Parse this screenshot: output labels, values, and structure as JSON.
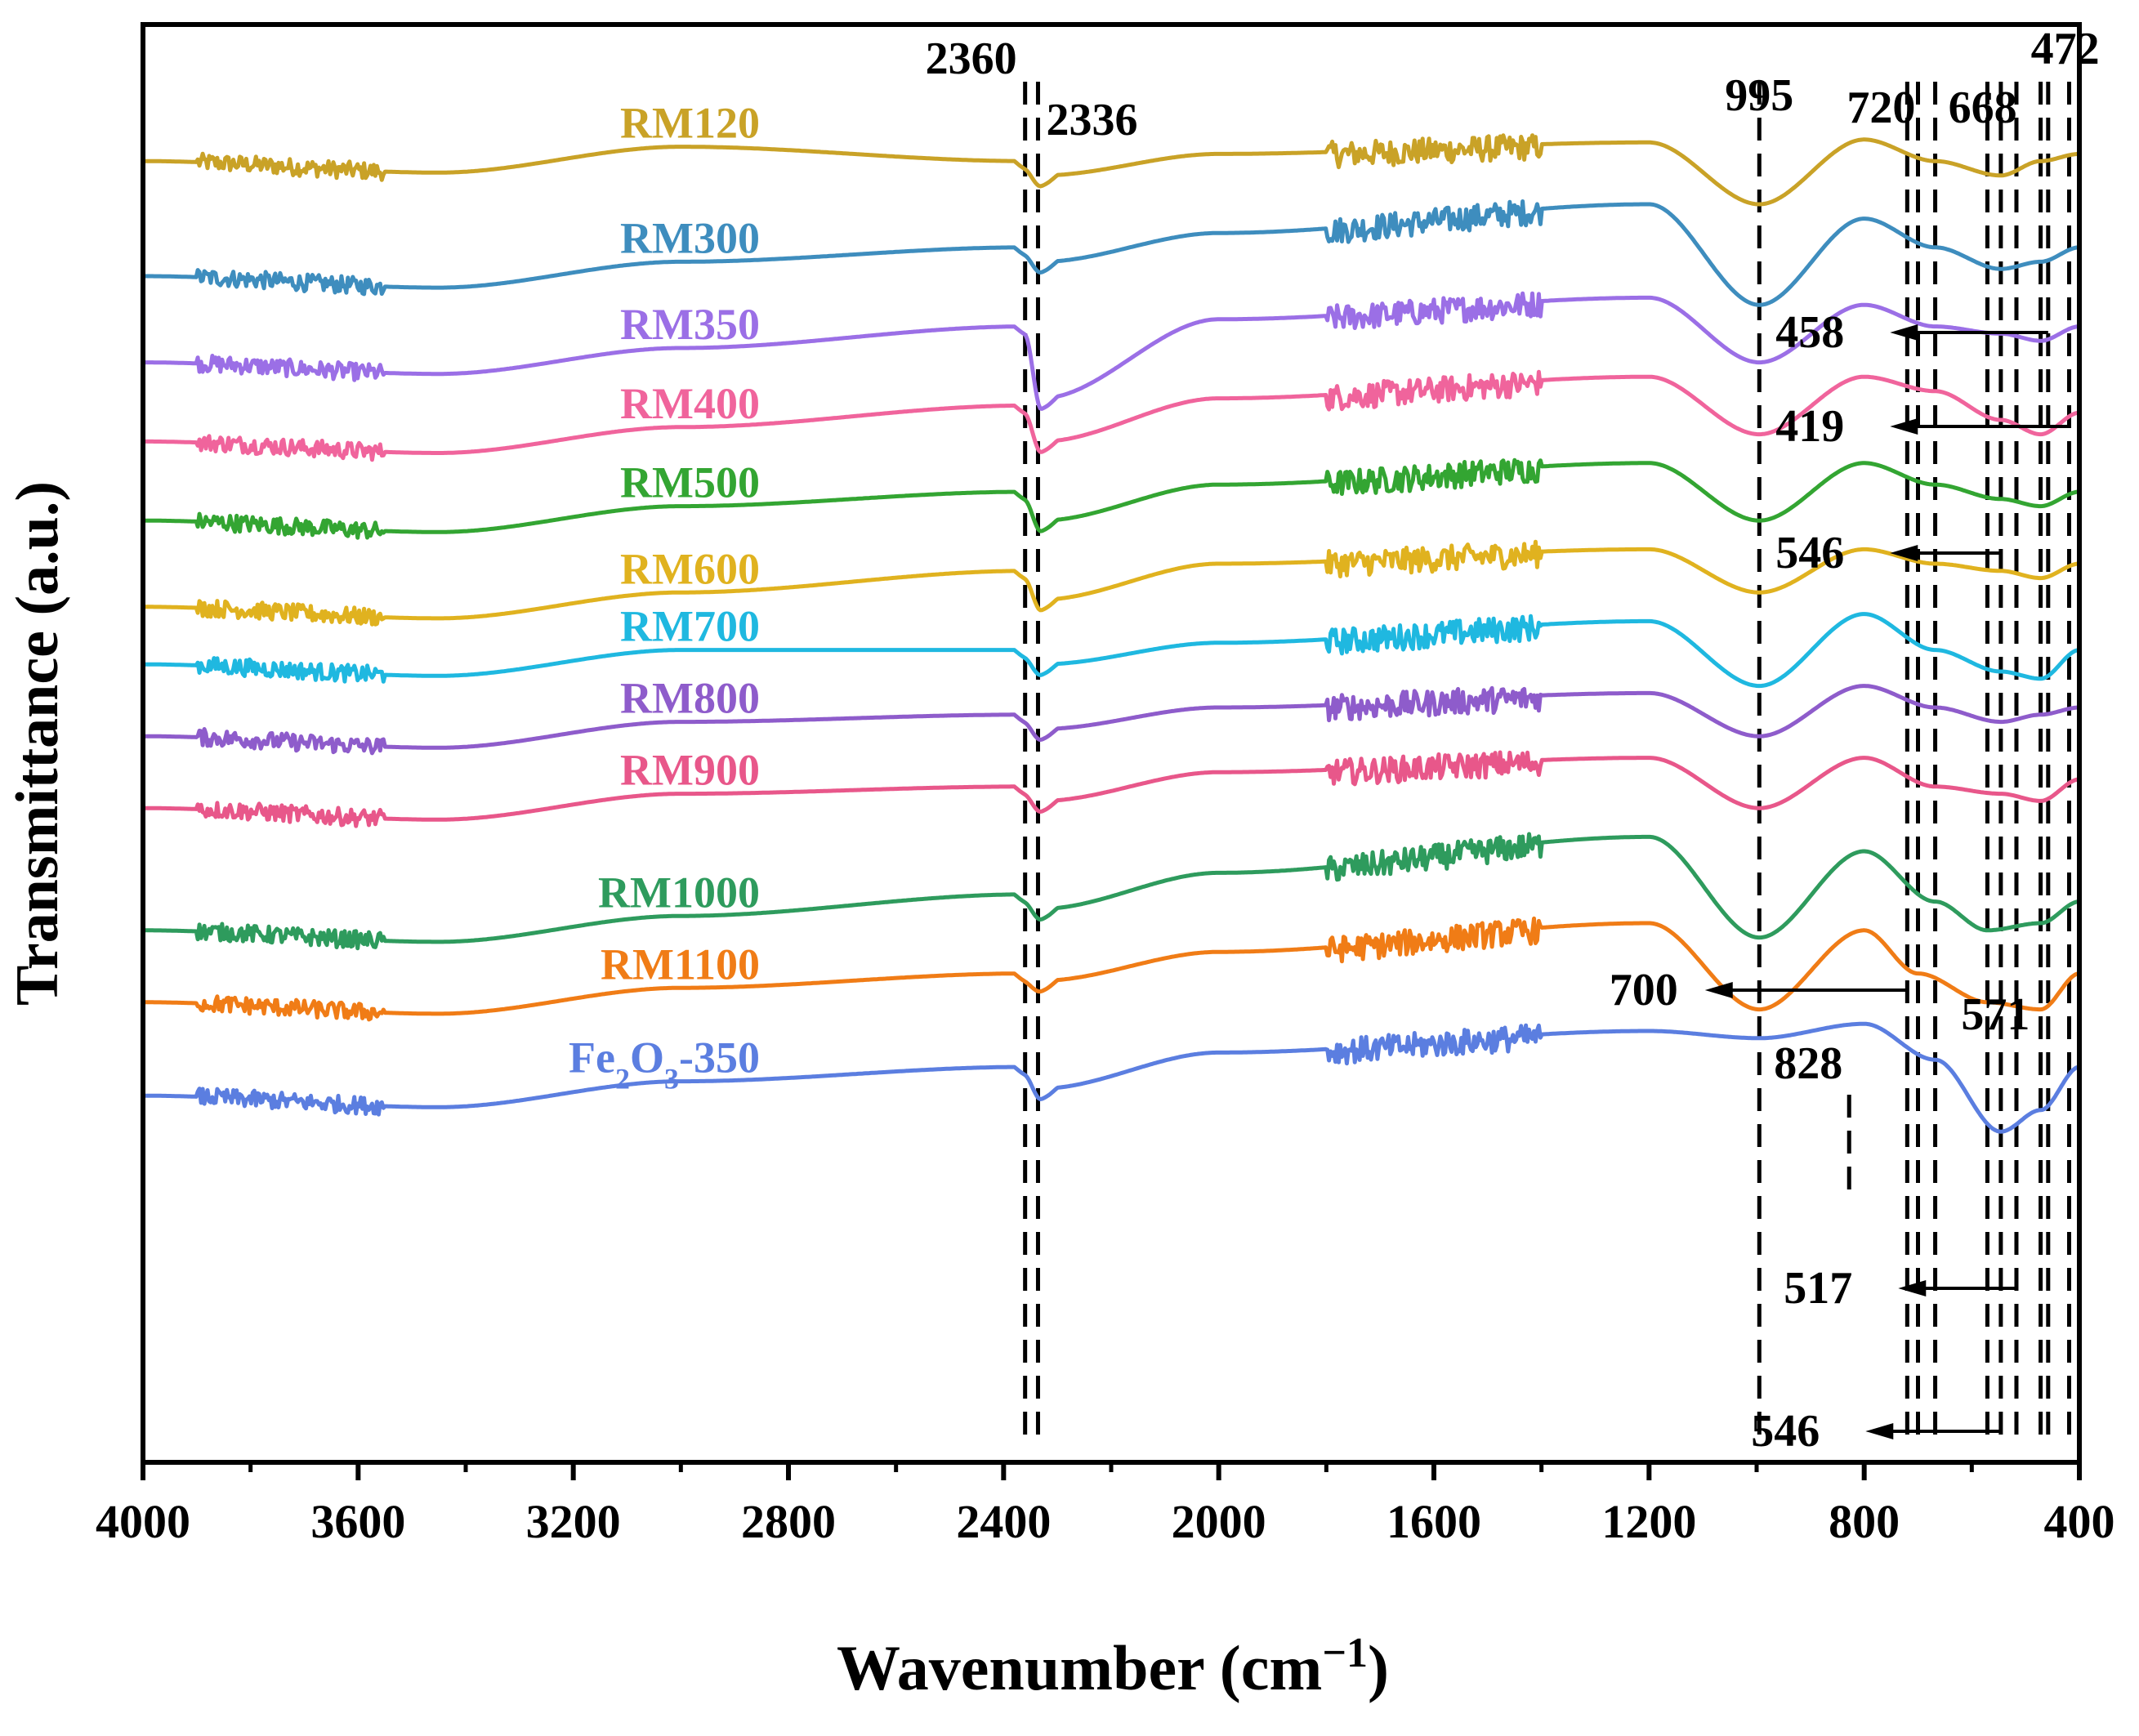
{
  "chart_data": {
    "type": "line",
    "ylabel": "Transmittance (a.u.)",
    "xlabel_main": "Wavenumber (cm",
    "xlabel_sup": "−1",
    "xlabel_close": ")",
    "xlim": [
      4000,
      400
    ],
    "x_reversed": true,
    "x_ticks": [
      4000,
      3600,
      3200,
      2800,
      2400,
      2000,
      1600,
      1200,
      800,
      400
    ],
    "y_ticks": [],
    "grid": false,
    "legend": "inline labels on left above each curve",
    "series": [
      {
        "name": "RM120",
        "color": "#C9A227",
        "baseline": 0.905,
        "profile": {
          "2360": 0.905,
          "2330": 0.895,
          "2000": 0.91,
          "1200": 0.918,
          "995": 0.875,
          "800": 0.92,
          "668": 0.905,
          "546": 0.895,
          "472": 0.905,
          "400": 0.91
        }
      },
      {
        "name": "RM300",
        "color": "#3E8DBE",
        "baseline": 0.825,
        "profile": {
          "2360": 0.845,
          "2330": 0.835,
          "2000": 0.855,
          "1200": 0.875,
          "995": 0.805,
          "800": 0.865,
          "668": 0.845,
          "546": 0.83,
          "472": 0.835,
          "400": 0.845
        }
      },
      {
        "name": "RM350",
        "color": "#9B6FE6",
        "baseline": 0.765,
        "profile": {
          "2360": 0.79,
          "2330": 0.74,
          "2000": 0.795,
          "1200": 0.81,
          "995": 0.765,
          "800": 0.805,
          "668": 0.79,
          "546": 0.785,
          "472": 0.78,
          "400": 0.79
        }
      },
      {
        "name": "RM400",
        "color": "#F0649C",
        "baseline": 0.71,
        "profile": {
          "2360": 0.735,
          "2330": 0.71,
          "2000": 0.74,
          "1200": 0.755,
          "995": 0.715,
          "800": 0.755,
          "668": 0.745,
          "546": 0.725,
          "472": 0.715,
          "400": 0.73
        }
      },
      {
        "name": "RM500",
        "color": "#33A532",
        "baseline": 0.655,
        "profile": {
          "2360": 0.675,
          "2330": 0.655,
          "2000": 0.68,
          "1200": 0.695,
          "995": 0.655,
          "800": 0.695,
          "668": 0.68,
          "546": 0.67,
          "472": 0.665,
          "400": 0.675
        }
      },
      {
        "name": "RM600",
        "color": "#E0B21F",
        "baseline": 0.595,
        "profile": {
          "2360": 0.62,
          "2330": 0.6,
          "2000": 0.625,
          "1200": 0.635,
          "995": 0.605,
          "800": 0.635,
          "668": 0.625,
          "546": 0.62,
          "472": 0.615,
          "400": 0.625
        }
      },
      {
        "name": "RM700",
        "color": "#1FB8E0",
        "baseline": 0.555,
        "profile": {
          "2360": 0.565,
          "2330": 0.555,
          "2000": 0.57,
          "1200": 0.585,
          "995": 0.54,
          "800": 0.59,
          "668": 0.565,
          "546": 0.55,
          "472": 0.545,
          "400": 0.565
        }
      },
      {
        "name": "RM800",
        "color": "#8E5CCB",
        "baseline": 0.505,
        "profile": {
          "2360": 0.52,
          "2330": 0.51,
          "2000": 0.525,
          "1200": 0.535,
          "995": 0.505,
          "800": 0.54,
          "668": 0.525,
          "546": 0.515,
          "472": 0.52,
          "400": 0.525
        }
      },
      {
        "name": "RM900",
        "color": "#E8578A",
        "baseline": 0.455,
        "profile": {
          "2360": 0.47,
          "2330": 0.46,
          "2000": 0.48,
          "1200": 0.49,
          "995": 0.455,
          "800": 0.49,
          "668": 0.47,
          "546": 0.465,
          "472": 0.46,
          "400": 0.475
        }
      },
      {
        "name": "RM1000",
        "color": "#2E9B5D",
        "baseline": 0.37,
        "profile": {
          "2360": 0.395,
          "2330": 0.385,
          "2000": 0.41,
          "1200": 0.435,
          "995": 0.365,
          "800": 0.425,
          "668": 0.39,
          "571": 0.37,
          "472": 0.375,
          "400": 0.39
        }
      },
      {
        "name": "RM1100",
        "color": "#F07C16",
        "baseline": 0.32,
        "profile": {
          "2360": 0.34,
          "2330": 0.335,
          "2000": 0.355,
          "1200": 0.375,
          "995": 0.315,
          "800": 0.37,
          "700": 0.34,
          "571": 0.32,
          "472": 0.315,
          "400": 0.34
        }
      },
      {
        "name": "Fe2O3-350",
        "color": "#5B7EE0",
        "baseline": 0.255,
        "profile": {
          "2360": 0.275,
          "2330": 0.26,
          "2000": 0.285,
          "1200": 0.3,
          "995": 0.295,
          "800": 0.305,
          "668": 0.28,
          "546": 0.23,
          "472": 0.245,
          "400": 0.275
        }
      }
    ],
    "peak_labels": [
      {
        "text": "2360"
      },
      {
        "text": "2336"
      },
      {
        "text": "995"
      },
      {
        "text": "720"
      },
      {
        "text": "668"
      },
      {
        "text": "472"
      },
      {
        "text": "458"
      },
      {
        "text": "419"
      },
      {
        "text": "546"
      },
      {
        "text": "700"
      },
      {
        "text": "571"
      },
      {
        "text": "828"
      },
      {
        "text": "517"
      },
      {
        "text": "546"
      }
    ],
    "fe_label": {
      "main": "Fe",
      "sub1": "2",
      "mid": "O",
      "sub2": "3",
      "tail": "-350"
    }
  }
}
